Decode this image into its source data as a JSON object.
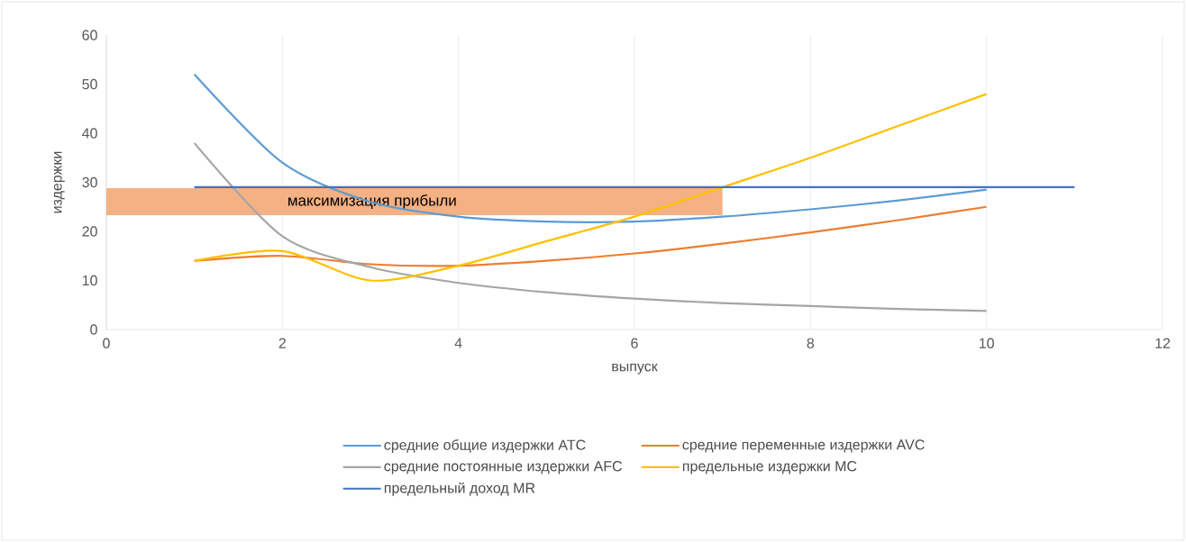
{
  "chart_data": {
    "type": "line",
    "xlabel": "выпуск",
    "ylabel": "издержки",
    "x": [
      1,
      2,
      3,
      4,
      5,
      6,
      7,
      8,
      9,
      10
    ],
    "series": [
      {
        "name": "средние общие издержки ATC",
        "color": "#5b9bd5",
        "values": [
          52,
          34,
          26,
          23,
          22,
          22,
          23,
          24.5,
          26.3,
          28.5
        ]
      },
      {
        "name": "средние переменные издержки AVC",
        "color": "#ed7d31",
        "values": [
          14,
          15,
          13.3,
          13,
          14,
          15.5,
          17.5,
          19.8,
          22.3,
          25
        ]
      },
      {
        "name": "средние постоянные издержки AFC",
        "color": "#a5a5a5",
        "values": [
          38,
          19,
          12.7,
          9.5,
          7.6,
          6.3,
          5.4,
          4.8,
          4.2,
          3.8
        ]
      },
      {
        "name": "предельные издержки MC",
        "color": "#ffc000",
        "values": [
          14,
          16,
          10,
          13,
          18,
          23,
          29,
          35,
          41.5,
          48
        ]
      },
      {
        "name": "предельный доход MR",
        "color": "#4472c4",
        "x": [
          1,
          11
        ],
        "values": [
          29,
          29
        ]
      }
    ],
    "bands": [
      {
        "axis": "y",
        "from": 23.3,
        "to": 28.8,
        "label": "максимизация прибыли",
        "color": "#f4b183"
      }
    ],
    "xlim": [
      0,
      12
    ],
    "ylim": [
      0,
      60
    ],
    "xticks": [
      0,
      2,
      4,
      6,
      8,
      10,
      12
    ],
    "yticks": [
      0,
      10,
      20,
      30,
      40,
      50,
      60
    ],
    "grid": "x",
    "legend": "bottom",
    "marker": "none",
    "line_style": "solid"
  }
}
